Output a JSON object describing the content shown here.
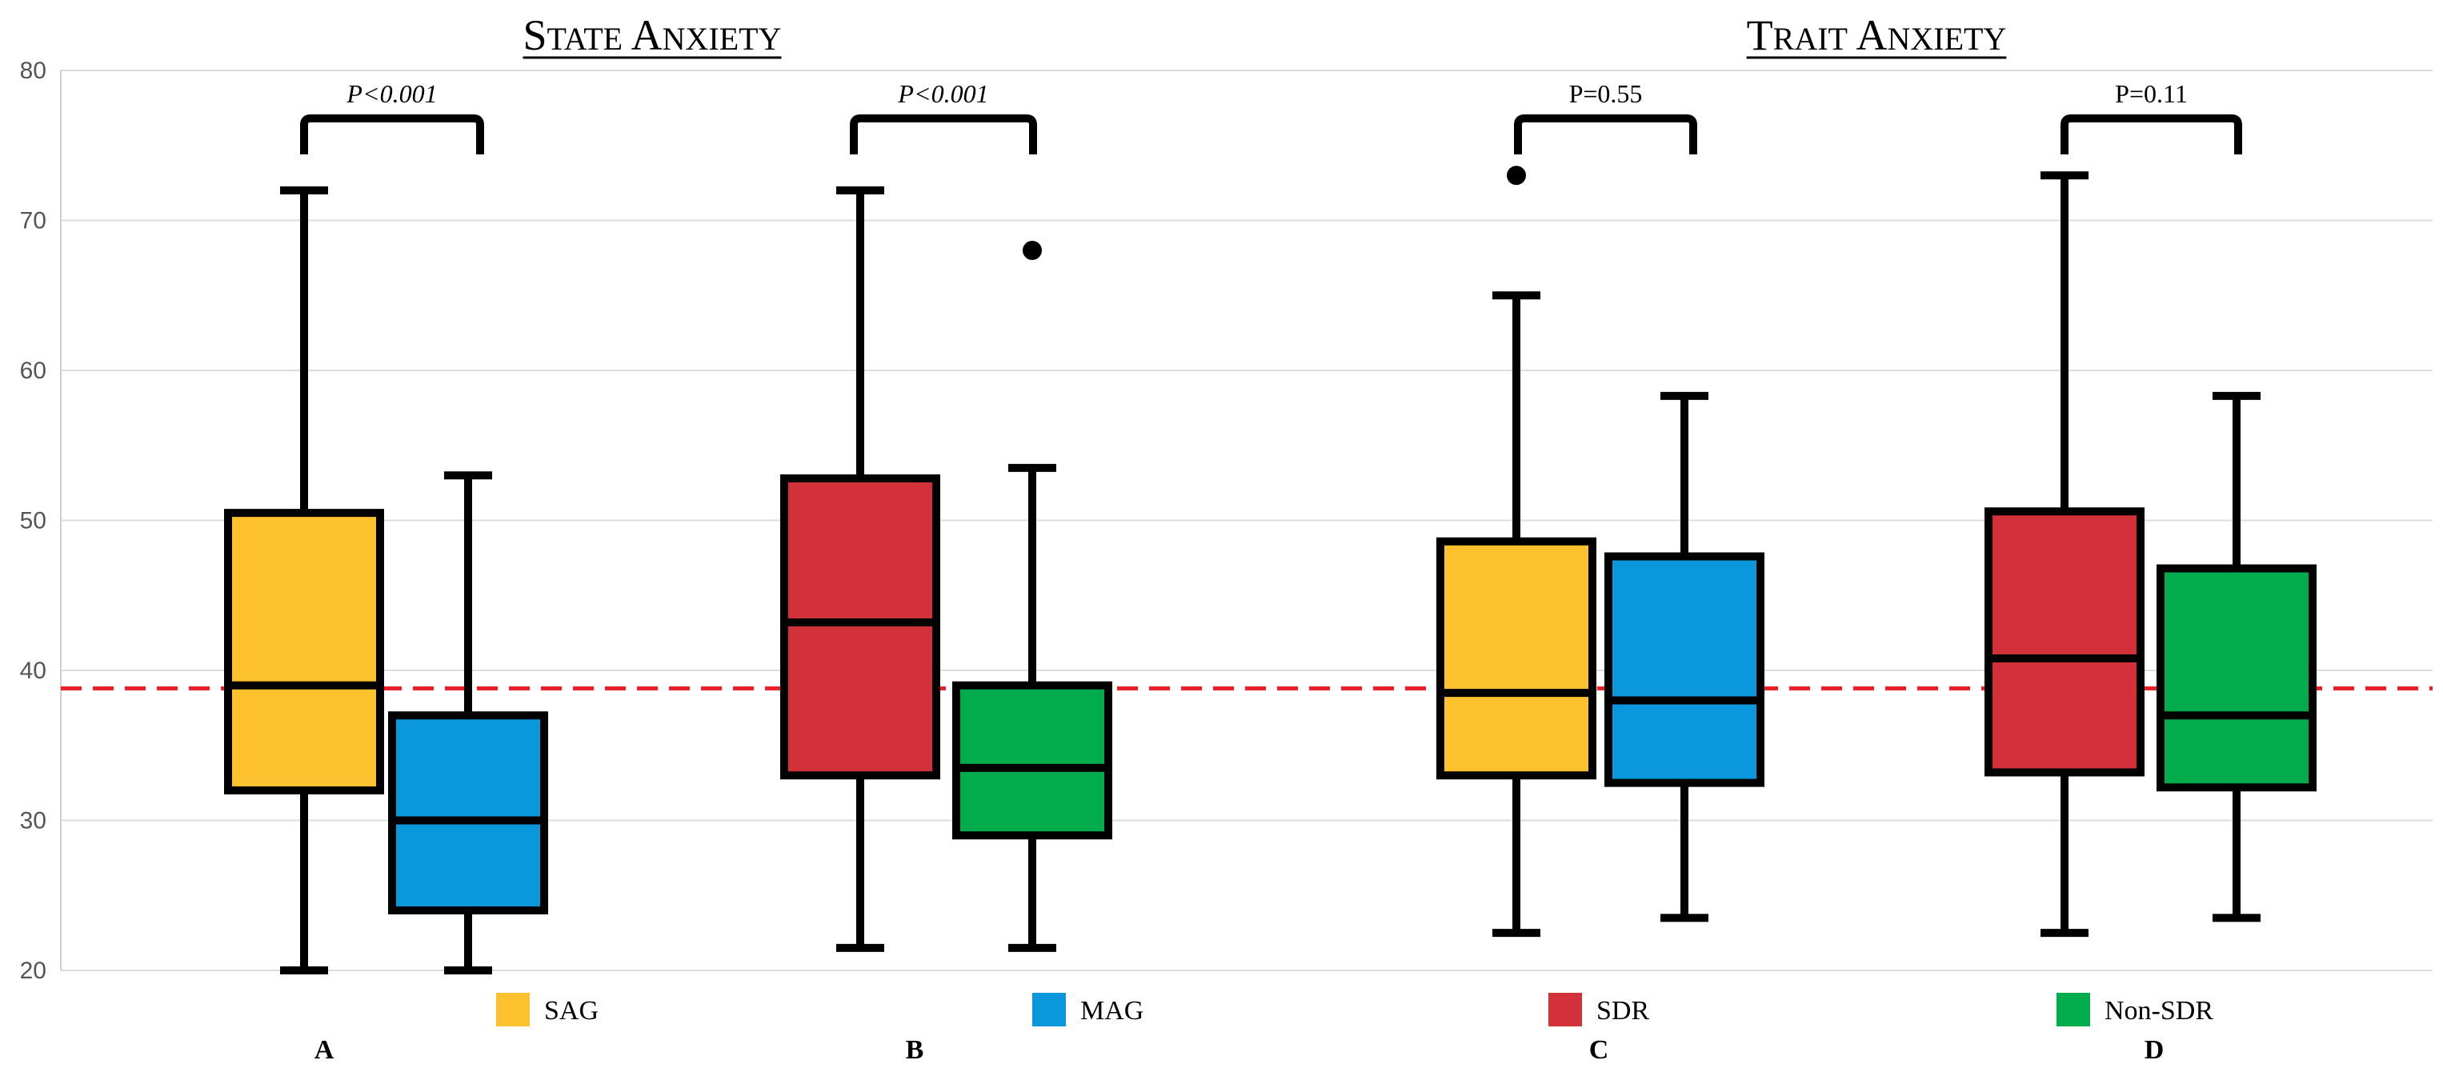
{
  "chart_data": {
    "type": "box",
    "y_axis": {
      "min": 20,
      "max": 80,
      "ticks": [
        20,
        30,
        40,
        50,
        60,
        70,
        80
      ]
    },
    "grid": true,
    "reference_line": {
      "value": 38.8,
      "color": "#e8202a",
      "style": "dashed"
    },
    "sections": [
      {
        "title": "State Anxiety",
        "groups": [
          "A",
          "B"
        ]
      },
      {
        "title": "Trait Anxiety",
        "groups": [
          "C",
          "D"
        ]
      }
    ],
    "groups": [
      {
        "label": "A",
        "p_value": "P<0.001",
        "p_italic": true,
        "boxes": [
          {
            "series": "SAG",
            "whisker_low": 20,
            "q1": 32,
            "median": 39,
            "q3": 50.5,
            "whisker_high": 72,
            "outliers": []
          },
          {
            "series": "MAG",
            "whisker_low": 20,
            "q1": 24,
            "median": 30,
            "q3": 37,
            "whisker_high": 53,
            "outliers": []
          }
        ]
      },
      {
        "label": "B",
        "p_value": "P<0.001",
        "p_italic": true,
        "boxes": [
          {
            "series": "SDR",
            "whisker_low": 21.5,
            "q1": 33,
            "median": 43.2,
            "q3": 52.8,
            "whisker_high": 72,
            "outliers": []
          },
          {
            "series": "Non-SDR",
            "whisker_low": 21.5,
            "q1": 29,
            "median": 33.5,
            "q3": 39,
            "whisker_high": 53.5,
            "outliers": [
              68
            ]
          }
        ]
      },
      {
        "label": "C",
        "p_value": "P=0.55",
        "p_italic": false,
        "boxes": [
          {
            "series": "SAG",
            "whisker_low": 22.5,
            "q1": 33,
            "median": 38.5,
            "q3": 48.6,
            "whisker_high": 65,
            "outliers": [
              73
            ]
          },
          {
            "series": "MAG",
            "whisker_low": 23.5,
            "q1": 32.5,
            "median": 38,
            "q3": 47.6,
            "whisker_high": 58.3,
            "outliers": []
          }
        ]
      },
      {
        "label": "D",
        "p_value": "P=0.11",
        "p_italic": false,
        "boxes": [
          {
            "series": "SDR",
            "whisker_low": 22.5,
            "q1": 33.2,
            "median": 40.8,
            "q3": 50.6,
            "whisker_high": 73,
            "outliers": []
          },
          {
            "series": "Non-SDR",
            "whisker_low": 23.5,
            "q1": 32.2,
            "median": 37,
            "q3": 46.8,
            "whisker_high": 58.3,
            "outliers": []
          }
        ]
      }
    ],
    "legend": [
      {
        "name": "SAG",
        "color": "#fdc12e"
      },
      {
        "name": "MAG",
        "color": "#0b97dc"
      },
      {
        "name": "SDR",
        "color": "#d33139"
      },
      {
        "name": "Non-SDR",
        "color": "#02ac4c"
      }
    ]
  }
}
